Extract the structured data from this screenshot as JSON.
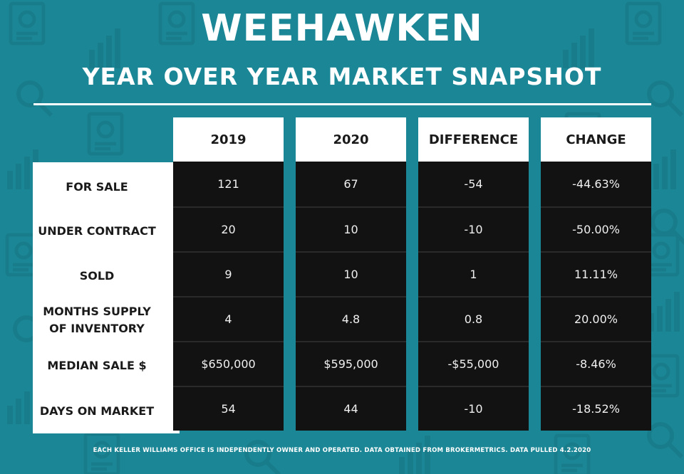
{
  "header": {
    "title": "WEEHAWKEN",
    "subtitle": "YEAR OVER YEAR MARKET SNAPSHOT"
  },
  "table": {
    "columns": [
      "2019",
      "2020",
      "DIFFERENCE",
      "CHANGE"
    ],
    "rows": [
      {
        "label": "FOR SALE",
        "values": [
          "121",
          "67",
          "-54",
          "-44.63%"
        ]
      },
      {
        "label": "UNDER CONTRACT",
        "values": [
          "20",
          "10",
          "-10",
          "-50.00%"
        ]
      },
      {
        "label": "SOLD",
        "values": [
          "9",
          "10",
          "1",
          "11.11%"
        ]
      },
      {
        "label": "MONTHS SUPPLY OF INVENTORY",
        "values": [
          "4",
          "4.8",
          "0.8",
          "20.00%"
        ]
      },
      {
        "label": "MEDIAN SALE $",
        "values": [
          "$650,000",
          "$595,000",
          "-$55,000",
          "-8.46%"
        ]
      },
      {
        "label": "DAYS ON MARKET",
        "values": [
          "54",
          "44",
          "-10",
          "-18.52%"
        ]
      }
    ]
  },
  "footer": {
    "text": "EACH KELLER WILLIAMS OFFICE IS INDEPENDENTLY OWNER AND OPERATED. DATA OBTAINED FROM BROKERMETRICS. DATA PULLED 4.2.2020"
  },
  "colors": {
    "background": "#1b8796",
    "header_bg": "#ffffff",
    "cell_bg": "#121212",
    "cell_text": "#f0f0f0"
  }
}
